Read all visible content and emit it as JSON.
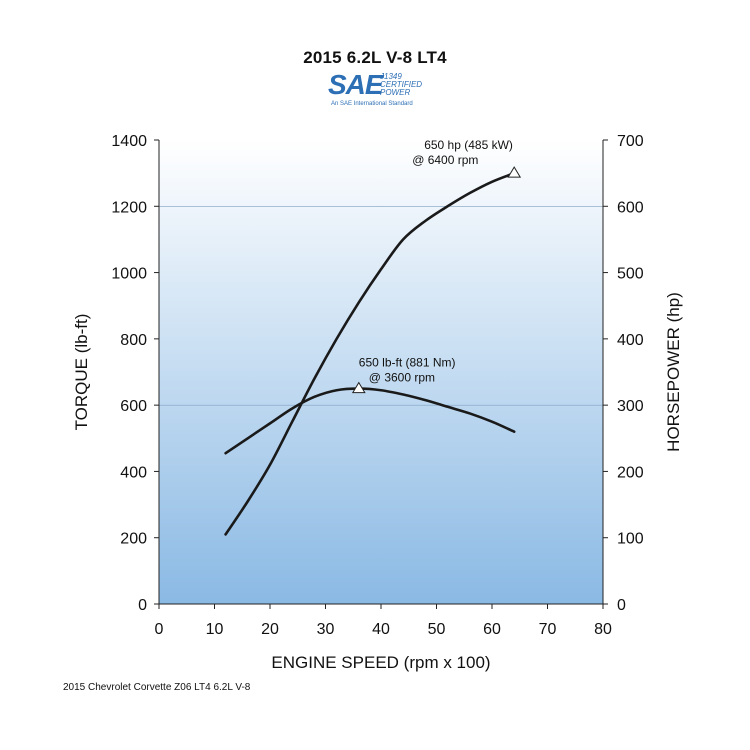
{
  "chart_data": {
    "type": "line",
    "title": "2015 6.2L V-8 LT4",
    "logo": {
      "mark": "SAE",
      "lines": [
        "J1349",
        "CERTIFIED",
        "POWER"
      ],
      "standard": "An SAE International Standard"
    },
    "xlabel": "ENGINE SPEED (rpm x 100)",
    "ylabel_left": "TORQUE (lb-ft)",
    "ylabel_right": "HORSEPOWER (hp)",
    "xlim": [
      0,
      80
    ],
    "ylim_left": [
      0,
      1400
    ],
    "ylim_right": [
      0,
      700
    ],
    "x_ticks": [
      "0",
      "10",
      "20",
      "30",
      "40",
      "50",
      "60",
      "70",
      "80"
    ],
    "y_ticks_left": [
      "0",
      "200",
      "400",
      "600",
      "800",
      "1000",
      "1200",
      "1400"
    ],
    "y_ticks_right": [
      "0",
      "100",
      "200",
      "300",
      "400",
      "500",
      "600",
      "700"
    ],
    "background_gradient": [
      "#ffffff",
      "#8ab9e4"
    ],
    "line_color": "#1a1a1a",
    "series": [
      {
        "axis": "left",
        "x": [
          12,
          16,
          20,
          24,
          28,
          32,
          36,
          40,
          44,
          48,
          52,
          56,
          60,
          64
        ],
        "y": [
          455,
          500,
          545,
          590,
          625,
          645,
          650,
          645,
          632,
          615,
          595,
          575,
          550,
          520
        ]
      },
      {
        "axis": "right",
        "x": [
          12,
          16,
          20,
          24,
          28,
          32,
          36,
          40,
          44,
          48,
          52,
          56,
          60,
          64
        ],
        "y": [
          105,
          155,
          210,
          275,
          340,
          400,
          455,
          505,
          550,
          578,
          600,
          620,
          637,
          650
        ]
      }
    ],
    "annotations": [
      {
        "axis": "right",
        "x": 64,
        "y": 650,
        "lines": [
          "650 hp (485 kW)",
          "@ 6400 rpm"
        ]
      },
      {
        "axis": "left",
        "x": 36,
        "y": 650,
        "lines": [
          "650 lb-ft (881 Nm)",
          "@ 3600 rpm"
        ]
      }
    ],
    "gridlines_left": [
      600,
      1200
    ],
    "footnote": "2015 Chevrolet Corvette Z06 LT4 6.2L V-8"
  }
}
